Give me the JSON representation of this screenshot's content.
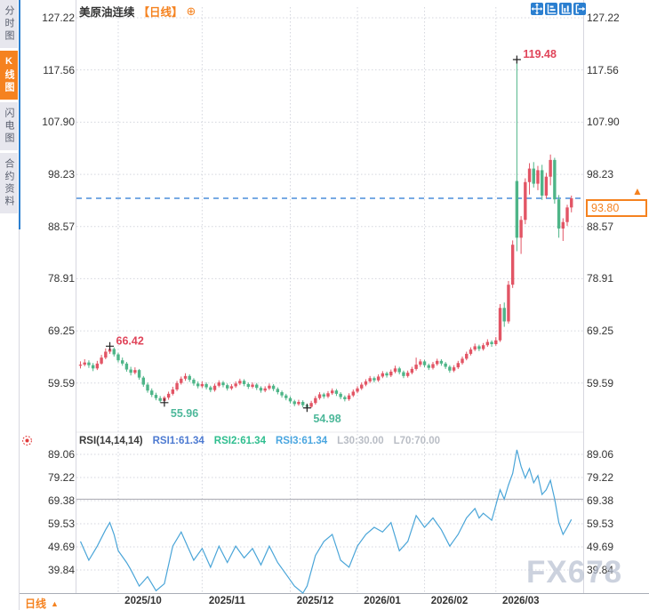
{
  "sidebar": {
    "tabs": [
      {
        "label": "分时图",
        "active": false
      },
      {
        "label": "K线图",
        "active": true
      },
      {
        "label": "闪电图",
        "active": false
      },
      {
        "label": "合约资料",
        "active": false
      }
    ]
  },
  "header": {
    "symbol": "美原油连续",
    "period_tag": "【日线】",
    "add_indicator_glyph": "⊕"
  },
  "toolbar": {
    "icons": [
      "crosshair-pan-icon",
      "left-axis-scale-icon",
      "bottom-axis-scale-icon",
      "exit-chart-icon"
    ]
  },
  "rsi_header": {
    "name": "RSI(14,14,14)",
    "series": [
      {
        "text": "RSI1:61.34",
        "color": "#4d7ad1"
      },
      {
        "text": "RSI2:61.34",
        "color": "#2fbe8f"
      },
      {
        "text": "RSI3:61.34",
        "color": "#4aa6e0"
      },
      {
        "text": "L30:30.00",
        "color": "#b9bdc5"
      },
      {
        "text": "L70:70.00",
        "color": "#b9bdc5"
      }
    ]
  },
  "footer": {
    "period_label": "日线",
    "arrow": "▲"
  },
  "watermark": "FX678",
  "chart_data": {
    "type": "candlestick",
    "title": "美原油连续 日线",
    "price_ticks": [
      127.22,
      117.56,
      107.9,
      98.23,
      88.57,
      78.91,
      69.25,
      59.59
    ],
    "price_tick_labels": [
      "127.22",
      "117.56",
      "107.90",
      "98.23",
      "88.57",
      "78.91",
      "69.25",
      "59.59"
    ],
    "month_labels": [
      "2025/10",
      "2025/11",
      "2025/12",
      "2026/01",
      "2026/02",
      "2026/03"
    ],
    "month_start_indices": [
      9,
      29,
      50,
      66,
      82,
      99
    ],
    "current_price": 93.8,
    "current_price_label": "93.80",
    "annotations": [
      {
        "index": 7,
        "price": 66.42,
        "text": "66.42",
        "kind": "high"
      },
      {
        "index": 20,
        "price": 55.96,
        "text": "55.96",
        "kind": "low"
      },
      {
        "index": 54,
        "price": 54.98,
        "text": "54.98",
        "kind": "low"
      },
      {
        "index": 104,
        "price": 119.48,
        "text": "119.48",
        "kind": "high"
      }
    ],
    "candles": [
      [
        62.8,
        63.6,
        62.3,
        63.0
      ],
      [
        63.0,
        64.0,
        62.7,
        63.4
      ],
      [
        63.4,
        63.8,
        62.4,
        62.9
      ],
      [
        62.9,
        63.3,
        61.8,
        62.3
      ],
      [
        62.3,
        63.7,
        62.0,
        63.2
      ],
      [
        63.2,
        64.8,
        63.0,
        64.3
      ],
      [
        64.3,
        66.0,
        64.0,
        65.4
      ],
      [
        65.4,
        66.42,
        65.0,
        65.9
      ],
      [
        65.9,
        66.2,
        64.5,
        64.9
      ],
      [
        64.9,
        65.2,
        63.4,
        63.8
      ],
      [
        63.8,
        64.3,
        62.8,
        63.2
      ],
      [
        63.2,
        63.5,
        61.7,
        62.1
      ],
      [
        62.1,
        62.6,
        61.0,
        61.5
      ],
      [
        61.5,
        62.5,
        61.2,
        62.0
      ],
      [
        62.0,
        62.2,
        60.2,
        60.6
      ],
      [
        60.6,
        60.9,
        58.9,
        59.3
      ],
      [
        59.3,
        59.7,
        57.8,
        58.2
      ],
      [
        58.2,
        58.6,
        57.0,
        57.4
      ],
      [
        57.4,
        57.8,
        56.4,
        56.8
      ],
      [
        56.8,
        57.2,
        56.0,
        56.3
      ],
      [
        56.3,
        57.2,
        55.96,
        56.9
      ],
      [
        56.9,
        58.0,
        56.5,
        57.6
      ],
      [
        57.6,
        58.9,
        57.3,
        58.4
      ],
      [
        58.4,
        60.0,
        58.1,
        59.6
      ],
      [
        59.6,
        60.8,
        59.3,
        60.4
      ],
      [
        60.4,
        61.4,
        60.0,
        60.9
      ],
      [
        60.9,
        61.2,
        59.8,
        60.2
      ],
      [
        60.2,
        60.5,
        59.1,
        59.5
      ],
      [
        59.5,
        59.9,
        58.6,
        59.0
      ],
      [
        59.0,
        59.9,
        58.7,
        59.4
      ],
      [
        59.4,
        59.7,
        58.4,
        58.8
      ],
      [
        58.8,
        59.1,
        57.9,
        58.3
      ],
      [
        58.3,
        59.5,
        58.0,
        59.1
      ],
      [
        59.1,
        60.1,
        58.8,
        59.7
      ],
      [
        59.7,
        60.0,
        58.8,
        59.2
      ],
      [
        59.2,
        59.5,
        58.2,
        58.6
      ],
      [
        58.6,
        59.4,
        58.3,
        59.0
      ],
      [
        59.0,
        59.9,
        58.7,
        59.5
      ],
      [
        59.5,
        60.4,
        59.2,
        60.0
      ],
      [
        60.0,
        60.3,
        59.0,
        59.4
      ],
      [
        59.4,
        59.7,
        58.5,
        58.9
      ],
      [
        58.9,
        59.7,
        58.6,
        59.3
      ],
      [
        59.3,
        59.6,
        58.3,
        58.7
      ],
      [
        58.7,
        59.0,
        57.8,
        58.2
      ],
      [
        58.2,
        59.0,
        57.9,
        58.6
      ],
      [
        58.6,
        59.5,
        58.3,
        59.1
      ],
      [
        59.1,
        59.4,
        58.1,
        58.5
      ],
      [
        58.5,
        58.8,
        57.5,
        57.9
      ],
      [
        57.9,
        58.2,
        56.9,
        57.3
      ],
      [
        57.3,
        57.6,
        56.4,
        56.8
      ],
      [
        56.8,
        57.1,
        55.8,
        56.2
      ],
      [
        56.2,
        56.5,
        55.3,
        55.7
      ],
      [
        55.7,
        56.5,
        55.4,
        56.1
      ],
      [
        56.1,
        56.4,
        55.1,
        55.5
      ],
      [
        55.5,
        55.8,
        54.98,
        55.2
      ],
      [
        55.2,
        56.3,
        55.0,
        55.9
      ],
      [
        55.9,
        57.2,
        55.6,
        56.8
      ],
      [
        56.8,
        57.9,
        56.5,
        57.5
      ],
      [
        57.5,
        57.8,
        56.7,
        57.1
      ],
      [
        57.1,
        58.1,
        56.8,
        57.7
      ],
      [
        57.7,
        58.6,
        57.4,
        58.2
      ],
      [
        58.2,
        58.5,
        57.2,
        57.6
      ],
      [
        57.6,
        57.9,
        56.6,
        57.0
      ],
      [
        57.0,
        57.3,
        56.2,
        56.6
      ],
      [
        56.6,
        57.7,
        56.3,
        57.3
      ],
      [
        57.3,
        58.4,
        57.0,
        58.0
      ],
      [
        58.0,
        59.0,
        57.7,
        58.6
      ],
      [
        58.6,
        59.7,
        58.3,
        59.3
      ],
      [
        59.3,
        60.3,
        59.0,
        59.9
      ],
      [
        59.9,
        60.9,
        59.6,
        60.5
      ],
      [
        60.5,
        60.8,
        59.7,
        60.1
      ],
      [
        60.1,
        61.2,
        59.8,
        60.8
      ],
      [
        60.8,
        61.8,
        60.5,
        61.4
      ],
      [
        61.4,
        61.7,
        60.6,
        61.0
      ],
      [
        61.0,
        62.1,
        60.7,
        61.7
      ],
      [
        61.7,
        62.8,
        61.4,
        62.3
      ],
      [
        62.3,
        62.6,
        61.2,
        61.6
      ],
      [
        61.6,
        61.9,
        60.5,
        60.9
      ],
      [
        60.9,
        61.9,
        60.6,
        61.5
      ],
      [
        61.5,
        62.6,
        61.2,
        62.2
      ],
      [
        62.2,
        64.3,
        61.9,
        63.0
      ],
      [
        63.0,
        64.0,
        62.6,
        63.6
      ],
      [
        63.6,
        63.9,
        62.5,
        62.9
      ],
      [
        62.9,
        63.2,
        62.0,
        62.4
      ],
      [
        62.4,
        63.5,
        62.1,
        63.1
      ],
      [
        63.1,
        64.1,
        62.8,
        63.7
      ],
      [
        63.7,
        64.0,
        62.8,
        63.2
      ],
      [
        63.2,
        63.5,
        62.2,
        62.6
      ],
      [
        62.6,
        62.9,
        61.5,
        61.9
      ],
      [
        61.9,
        62.9,
        61.6,
        62.5
      ],
      [
        62.5,
        63.7,
        62.2,
        63.3
      ],
      [
        63.3,
        64.5,
        63.0,
        64.1
      ],
      [
        64.1,
        65.4,
        63.8,
        65.0
      ],
      [
        65.0,
        66.2,
        64.7,
        65.8
      ],
      [
        65.8,
        66.9,
        65.5,
        66.4
      ],
      [
        66.4,
        66.7,
        65.5,
        65.9
      ],
      [
        65.9,
        67.0,
        65.6,
        66.6
      ],
      [
        66.6,
        67.7,
        66.3,
        67.2
      ],
      [
        67.2,
        67.5,
        66.3,
        66.8
      ],
      [
        66.8,
        68.1,
        66.5,
        67.5
      ],
      [
        67.5,
        74.2,
        67.2,
        73.5
      ],
      [
        73.5,
        74.5,
        70.0,
        71.0
      ],
      [
        71.0,
        78.5,
        70.6,
        77.8
      ],
      [
        77.8,
        86.0,
        77.2,
        85.2
      ],
      [
        97.0,
        119.48,
        84.0,
        86.5
      ],
      [
        86.5,
        90.5,
        83.5,
        89.8
      ],
      [
        89.8,
        97.5,
        89.0,
        96.8
      ],
      [
        96.8,
        100.3,
        94.5,
        99.3
      ],
      [
        99.3,
        100.5,
        95.8,
        96.5
      ],
      [
        96.5,
        99.8,
        95.3,
        99.0
      ],
      [
        99.0,
        100.0,
        93.5,
        94.3
      ],
      [
        94.3,
        98.5,
        93.8,
        97.8
      ],
      [
        97.8,
        101.9,
        96.2,
        100.9
      ],
      [
        100.9,
        101.3,
        92.8,
        93.6
      ],
      [
        93.6,
        94.4,
        86.5,
        88.2
      ],
      [
        88.2,
        90.1,
        85.9,
        89.4
      ],
      [
        89.4,
        92.6,
        88.7,
        92.1
      ],
      [
        92.1,
        94.3,
        91.2,
        93.8
      ]
    ],
    "rsi": {
      "params": "14,14,14",
      "current_values": [
        61.34,
        61.34,
        61.34
      ],
      "levels": {
        "l30": 30.0,
        "l70": 70.0
      },
      "ticks": [
        89.06,
        79.22,
        69.38,
        59.53,
        49.69,
        39.84
      ],
      "tick_labels": [
        "89.06",
        "79.22",
        "69.38",
        "59.53",
        "49.69",
        "39.84"
      ],
      "points": [
        [
          0,
          52
        ],
        [
          2,
          44
        ],
        [
          3,
          47
        ],
        [
          4,
          50
        ],
        [
          6,
          57
        ],
        [
          7,
          60
        ],
        [
          8,
          55
        ],
        [
          9,
          48
        ],
        [
          11,
          43
        ],
        [
          12,
          40
        ],
        [
          14,
          33
        ],
        [
          16,
          37
        ],
        [
          18,
          31
        ],
        [
          20,
          34
        ],
        [
          22,
          50
        ],
        [
          24,
          56
        ],
        [
          25,
          52
        ],
        [
          27,
          44
        ],
        [
          29,
          49
        ],
        [
          31,
          41
        ],
        [
          33,
          50
        ],
        [
          35,
          43
        ],
        [
          37,
          50
        ],
        [
          39,
          45
        ],
        [
          41,
          49
        ],
        [
          43,
          42
        ],
        [
          45,
          50
        ],
        [
          47,
          43
        ],
        [
          49,
          38
        ],
        [
          51,
          33
        ],
        [
          53,
          30
        ],
        [
          54,
          33
        ],
        [
          56,
          46
        ],
        [
          58,
          52
        ],
        [
          60,
          55
        ],
        [
          62,
          44
        ],
        [
          64,
          41
        ],
        [
          66,
          50
        ],
        [
          68,
          55
        ],
        [
          70,
          58
        ],
        [
          72,
          56
        ],
        [
          74,
          60
        ],
        [
          76,
          48
        ],
        [
          78,
          52
        ],
        [
          80,
          63
        ],
        [
          82,
          58
        ],
        [
          84,
          62
        ],
        [
          86,
          57
        ],
        [
          88,
          50
        ],
        [
          90,
          55
        ],
        [
          92,
          62
        ],
        [
          94,
          66
        ],
        [
          95,
          62
        ],
        [
          96,
          64
        ],
        [
          98,
          61
        ],
        [
          100,
          74
        ],
        [
          101,
          70
        ],
        [
          102,
          76
        ],
        [
          103,
          81
        ],
        [
          104,
          91
        ],
        [
          105,
          84
        ],
        [
          106,
          79
        ],
        [
          107,
          83
        ],
        [
          108,
          77
        ],
        [
          109,
          80
        ],
        [
          110,
          72
        ],
        [
          111,
          74
        ],
        [
          112,
          78
        ],
        [
          113,
          70
        ],
        [
          114,
          60
        ],
        [
          115,
          55
        ],
        [
          116,
          58
        ],
        [
          117,
          61.34
        ]
      ]
    },
    "colors": {
      "up": "#e25565",
      "down": "#4eb588",
      "rsi_line": "#4aa5d8",
      "accent_orange": "#f5821f",
      "current_price_line": "#2878d4",
      "annotation_high": "#e0455a",
      "annotation_low": "#4db89a",
      "grid": "#d4d6de",
      "level_line": "#a8a8b0"
    }
  }
}
